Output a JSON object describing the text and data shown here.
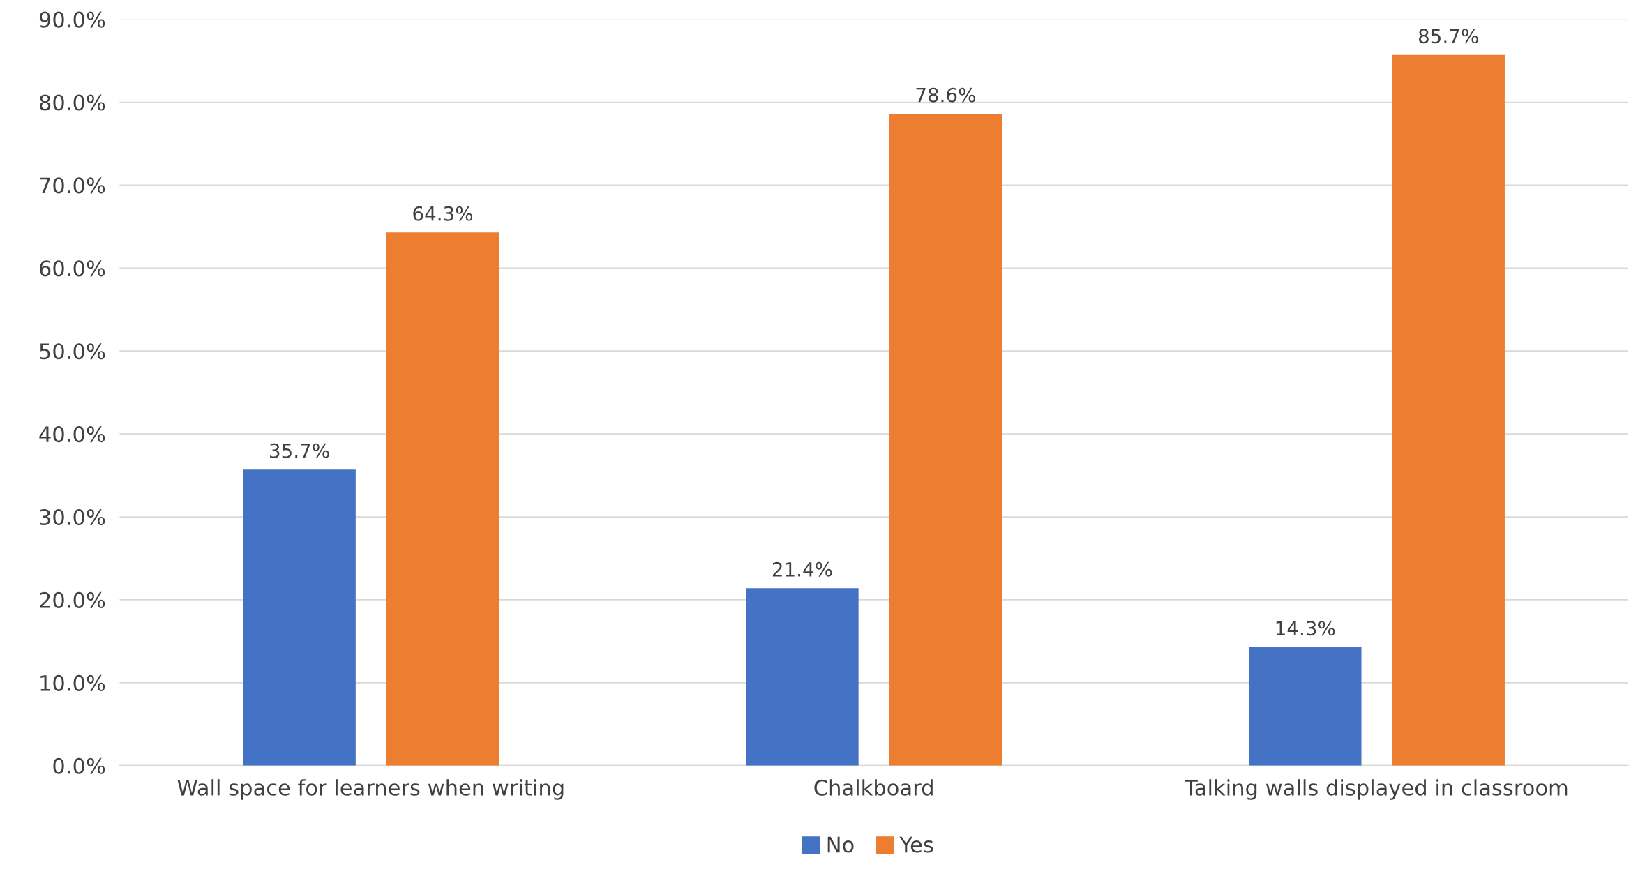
{
  "chart_data": {
    "type": "bar",
    "categories": [
      "Wall space for learners when writing",
      "Chalkboard",
      "Talking walls displayed in classroom"
    ],
    "series": [
      {
        "name": "No",
        "color": "#4472c4",
        "values": [
          35.7,
          21.4,
          14.3
        ],
        "value_labels": [
          "35.7%",
          "21.4%",
          "14.3%"
        ]
      },
      {
        "name": "Yes",
        "color": "#ed7d31",
        "values": [
          64.3,
          78.6,
          85.7
        ],
        "value_labels": [
          "64.3%",
          "78.6%",
          "85.7%"
        ]
      }
    ],
    "ylim": [
      0,
      90
    ],
    "yticks": [
      {
        "value": 0,
        "label": "0.0%"
      },
      {
        "value": 10,
        "label": "10.0%"
      },
      {
        "value": 20,
        "label": "20.0%"
      },
      {
        "value": 30,
        "label": "30.0%"
      },
      {
        "value": 40,
        "label": "40.0%"
      },
      {
        "value": 50,
        "label": "50.0%"
      },
      {
        "value": 60,
        "label": "60.0%"
      },
      {
        "value": 70,
        "label": "70.0%"
      },
      {
        "value": 80,
        "label": "80.0%"
      },
      {
        "value": 90,
        "label": "90.0%"
      }
    ],
    "grid": "y",
    "legend": "bottom"
  }
}
